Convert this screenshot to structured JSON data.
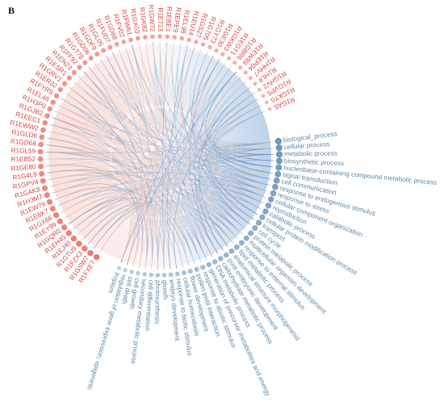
{
  "panel_label": "B",
  "colors": {
    "gene_node": "#f07a72",
    "gene_text": "#d9453e",
    "term_node": "#6d97b9",
    "term_text": "#5f88a8",
    "link_red": "#f4b6aa",
    "link_blue": "#2f6fb0"
  },
  "genes": [
    "R1FXE7",
    "R1GSW7",
    "R1FZX3",
    "R1GTU9",
    "R1EJ40",
    "R1EH45",
    "R1GQR0",
    "R1EY99",
    "R1GX66",
    "R1E6K7",
    "R1EW79",
    "R1H3M7",
    "R1GAK8",
    "R1GPV4",
    "R1G4L9",
    "R1GE80",
    "R1EB52",
    "R1GL59",
    "R1GD68",
    "R1GLD6",
    "R1EWW2",
    "R1EEC1",
    "R1GJB2",
    "R1H3P0",
    "R1EL46",
    "R1FYR9",
    "R1ER32",
    "R1GRV1",
    "R1ESR1",
    "R1EN23",
    "R1FF92",
    "R1GT78",
    "R1GD06",
    "R1GDF9",
    "R1GL05",
    "R1FUD7",
    "R1GD88",
    "R1FV02",
    "R1FW61",
    "R1GX03",
    "R1GK82",
    "R1GW72",
    "R1E713",
    "R1EBE1",
    "R1EPE9",
    "R1EL98",
    "R1EU14",
    "R1GS27",
    "R1G705",
    "R1GY73",
    "R1GE30",
    "R1GKW3",
    "R1EGT1",
    "R1GBR6",
    "R1EW89",
    "R1EP04",
    "R1HHV7",
    "R1HL9",
    "R1GHV2",
    "R1GVP5",
    "R1GKT0",
    "R1GA5"
  ],
  "terms": [
    "biological_process",
    "cellular process",
    "metabolic process",
    "biosynthetic process",
    "nucleobase-containing compound metabolic process",
    "signal transduction",
    "cell communication",
    "response to endogenous stimulus",
    "response to stress",
    "cellular component organization",
    "reproduction",
    "catabolic process",
    "cellular protein modification process",
    "transport",
    "cell cycle",
    "protein metabolic process",
    "multicellular organism development",
    "response to external stimulus",
    "lipid metabolic process",
    "anatomical structure morphogenesis",
    "post-embryonic development",
    "carbohydrate metabolic process",
    "DNA metabolic process",
    "generation of precursor metabolites and energy",
    "response to abiotic stimulus",
    "pollen-pistil interaction",
    "flower development",
    "cellular homeostasis",
    "response to biotic stimulus",
    "embryo development",
    "growth",
    "photosynthesis",
    "cell differentiation",
    "secondary metabolic process",
    "cell growth",
    "cell death",
    "regulation of gene expression, epigenetic",
    "tropism"
  ]
}
